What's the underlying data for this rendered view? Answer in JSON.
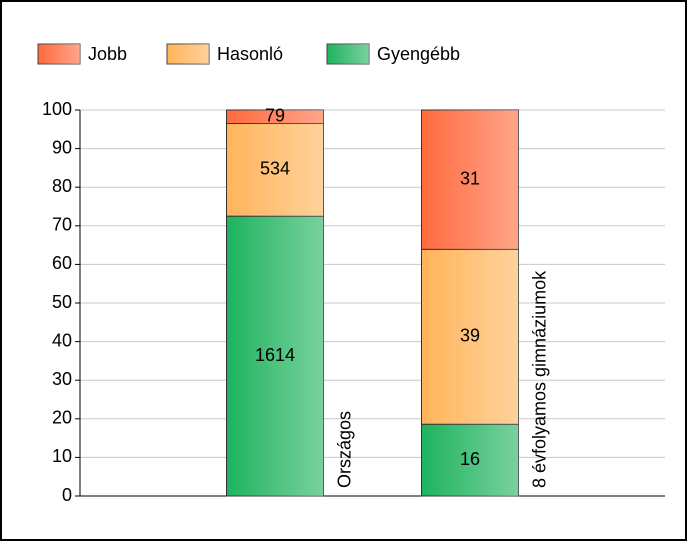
{
  "chart_data": {
    "type": "bar",
    "stacked": true,
    "categories": [
      "Országos",
      "8 évfolyamos gimnáziumok"
    ],
    "series": [
      {
        "name": "Jobb",
        "color": "#ff6a3d",
        "values": [
          3.5,
          36.1
        ],
        "value_labels": [
          "79",
          "31"
        ]
      },
      {
        "name": "Hasonló",
        "color": "#ffb45a",
        "values": [
          24.0,
          45.3
        ],
        "value_labels": [
          "534",
          "39"
        ]
      },
      {
        "name": "Gyengébb",
        "color": "#1fb35e",
        "values": [
          72.5,
          18.6
        ],
        "value_labels": [
          "1614",
          "16"
        ]
      }
    ],
    "ylim": [
      0,
      100
    ],
    "yticks": [
      0,
      10,
      20,
      30,
      40,
      50,
      60,
      70,
      80,
      90,
      100
    ],
    "grid": true,
    "legend": "top-left"
  }
}
